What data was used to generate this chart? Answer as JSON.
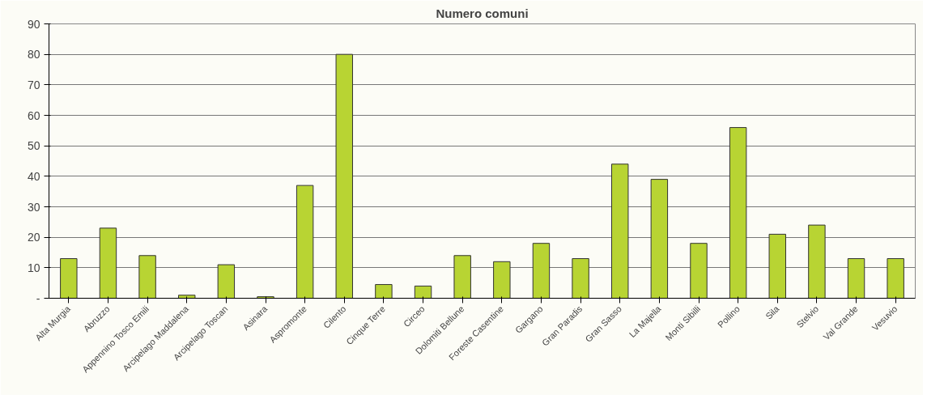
{
  "chart_data": {
    "type": "bar",
    "title": "Numero comuni",
    "categories": [
      "Alta Murgia",
      "Abruzzo",
      "Appennino Tosco Emili",
      "Arcipelago Maddalena",
      "Arcipelago Toscan",
      "Asinara",
      "Aspromonte",
      "Cilento",
      "Cinque Terre",
      "Circeo",
      "Dolomiti Bellune",
      "Foreste Casentine",
      "Gargano",
      "Gran Paradis",
      "Gran Sasso",
      "La Majella",
      "Monti Sibilli",
      "Pollino",
      "Sila",
      "Stelvio",
      "Val Grande",
      "Vesuvio"
    ],
    "values": [
      13,
      23,
      14,
      1,
      11,
      0.5,
      37,
      80,
      4.5,
      4,
      14,
      12,
      18,
      13,
      44,
      39,
      18,
      56,
      21,
      24,
      13,
      13
    ],
    "color": "#b8d433",
    "ylim": [
      0,
      90
    ],
    "yticks": [
      {
        "value": 0,
        "label": "-"
      },
      10,
      20,
      30,
      40,
      50,
      60,
      70,
      80,
      90
    ],
    "grid": "y"
  }
}
